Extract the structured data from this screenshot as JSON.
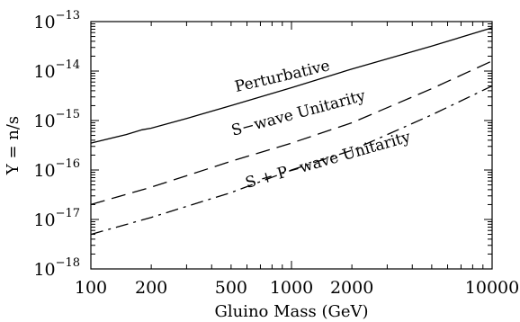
{
  "chart_data": {
    "type": "line",
    "title": "",
    "xlabel": "Gluino Mass (GeV)",
    "ylabel": "Y = n/s",
    "x_scale": "log",
    "y_scale": "log",
    "xlim": [
      100,
      10000
    ],
    "ylim": [
      1e-18,
      1e-13
    ],
    "x_ticks": [
      {
        "value": 100,
        "label": "100"
      },
      {
        "value": 200,
        "label": "200"
      },
      {
        "value": 500,
        "label": "500"
      },
      {
        "value": 1000,
        "label": "1000"
      },
      {
        "value": 2000,
        "label": "2000"
      },
      {
        "value": 10000,
        "label": "10000"
      }
    ],
    "y_ticks": [
      {
        "value": 1e-18,
        "base": "10",
        "exp": "−18"
      },
      {
        "value": 1e-17,
        "base": "10",
        "exp": "−17"
      },
      {
        "value": 1e-16,
        "base": "10",
        "exp": "−16"
      },
      {
        "value": 1e-15,
        "base": "10",
        "exp": "−15"
      },
      {
        "value": 1e-14,
        "base": "10",
        "exp": "−14"
      },
      {
        "value": 1e-13,
        "base": "10",
        "exp": "−13"
      }
    ],
    "grid": false,
    "legend": "none",
    "series": [
      {
        "name": "Perturbative",
        "style": "solid",
        "x": [
          100,
          150,
          180,
          200,
          300,
          500,
          1000,
          2000,
          5000,
          10000
        ],
        "y": [
          3.5e-16,
          5.2e-16,
          6.5e-16,
          7e-16,
          1.1e-15,
          2e-15,
          4.6e-15,
          1.1e-14,
          3.2e-14,
          7.5e-14
        ]
      },
      {
        "name": "S−wave Unitarity",
        "style": "dashed",
        "x": [
          100,
          200,
          500,
          1000,
          2000,
          5000,
          10000
        ],
        "y": [
          2e-17,
          4.5e-17,
          1.5e-16,
          3.5e-16,
          9e-16,
          4.4e-15,
          1.6e-14
        ]
      },
      {
        "name": "S + P−wave Unitarity",
        "style": "dashdot",
        "x": [
          100,
          200,
          500,
          1000,
          2000,
          5000,
          10000
        ],
        "y": [
          5e-18,
          1.1e-17,
          3.5e-17,
          1e-16,
          2.5e-16,
          1.3e-15,
          5e-15
        ]
      }
    ]
  }
}
